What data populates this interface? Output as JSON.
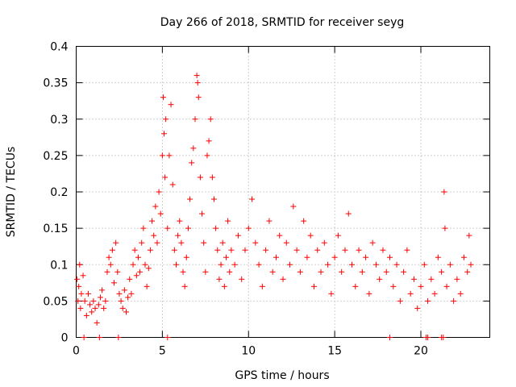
{
  "chart_data": {
    "type": "scatter",
    "title": "Day 266 of 2018, SRMTID for receiver seyg",
    "xlabel": "GPS time / hours",
    "ylabel": "SRMTID / TECUs",
    "xlim": [
      0,
      24
    ],
    "ylim": [
      0,
      0.4
    ],
    "x_ticks": [
      "0",
      "5",
      "10",
      "15",
      "20"
    ],
    "y_ticks": [
      "0",
      "0.05",
      "0.1",
      "0.15",
      "0.2",
      "0.25",
      "0.3",
      "0.35",
      "0.4"
    ],
    "grid": true,
    "marker": "+",
    "series": [
      {
        "name": "SRMTID",
        "color": "#ff0000",
        "points": [
          [
            0.05,
            0.08
          ],
          [
            0.1,
            0.05
          ],
          [
            0.15,
            0.07
          ],
          [
            0.2,
            0.1
          ],
          [
            0.25,
            0.04
          ],
          [
            0.3,
            0.06
          ],
          [
            0.4,
            0.085
          ],
          [
            0.5,
            0.05
          ],
          [
            0.6,
            0.03
          ],
          [
            0.7,
            0.06
          ],
          [
            0.8,
            0.045
          ],
          [
            0.9,
            0.035
          ],
          [
            1.0,
            0.05
          ],
          [
            1.1,
            0.04
          ],
          [
            1.2,
            0.02
          ],
          [
            1.3,
            0.045
          ],
          [
            1.4,
            0.055
          ],
          [
            1.5,
            0.065
          ],
          [
            1.6,
            0.04
          ],
          [
            1.7,
            0.05
          ],
          [
            1.8,
            0.09
          ],
          [
            1.9,
            0.11
          ],
          [
            2.0,
            0.1
          ],
          [
            2.1,
            0.12
          ],
          [
            2.2,
            0.075
          ],
          [
            2.3,
            0.13
          ],
          [
            2.4,
            0.09
          ],
          [
            2.5,
            0.06
          ],
          [
            2.6,
            0.05
          ],
          [
            2.7,
            0.04
          ],
          [
            2.8,
            0.065
          ],
          [
            2.9,
            0.035
          ],
          [
            3.0,
            0.055
          ],
          [
            3.1,
            0.08
          ],
          [
            3.2,
            0.06
          ],
          [
            3.3,
            0.1
          ],
          [
            3.4,
            0.12
          ],
          [
            3.5,
            0.085
          ],
          [
            3.6,
            0.11
          ],
          [
            3.7,
            0.09
          ],
          [
            3.8,
            0.13
          ],
          [
            3.9,
            0.15
          ],
          [
            4.0,
            0.1
          ],
          [
            4.1,
            0.07
          ],
          [
            4.2,
            0.095
          ],
          [
            4.3,
            0.12
          ],
          [
            4.4,
            0.16
          ],
          [
            4.5,
            0.14
          ],
          [
            4.6,
            0.18
          ],
          [
            4.7,
            0.13
          ],
          [
            4.8,
            0.2
          ],
          [
            4.9,
            0.17
          ],
          [
            5.0,
            0.25
          ],
          [
            5.05,
            0.33
          ],
          [
            5.1,
            0.28
          ],
          [
            5.15,
            0.22
          ],
          [
            5.2,
            0.3
          ],
          [
            5.3,
            0.15
          ],
          [
            5.4,
            0.25
          ],
          [
            5.5,
            0.32
          ],
          [
            5.6,
            0.21
          ],
          [
            5.7,
            0.12
          ],
          [
            5.8,
            0.1
          ],
          [
            5.9,
            0.14
          ],
          [
            6.0,
            0.16
          ],
          [
            6.1,
            0.13
          ],
          [
            6.2,
            0.09
          ],
          [
            6.3,
            0.07
          ],
          [
            6.4,
            0.11
          ],
          [
            6.5,
            0.15
          ],
          [
            6.6,
            0.19
          ],
          [
            6.7,
            0.24
          ],
          [
            6.8,
            0.26
          ],
          [
            6.9,
            0.3
          ],
          [
            7.0,
            0.36
          ],
          [
            7.05,
            0.35
          ],
          [
            7.1,
            0.33
          ],
          [
            7.2,
            0.22
          ],
          [
            7.3,
            0.17
          ],
          [
            7.4,
            0.13
          ],
          [
            7.5,
            0.09
          ],
          [
            7.6,
            0.25
          ],
          [
            7.7,
            0.27
          ],
          [
            7.8,
            0.3
          ],
          [
            7.9,
            0.22
          ],
          [
            8.0,
            0.19
          ],
          [
            8.1,
            0.15
          ],
          [
            8.2,
            0.12
          ],
          [
            8.3,
            0.08
          ],
          [
            8.4,
            0.1
          ],
          [
            8.5,
            0.13
          ],
          [
            8.6,
            0.07
          ],
          [
            8.7,
            0.11
          ],
          [
            8.8,
            0.16
          ],
          [
            8.9,
            0.09
          ],
          [
            9.0,
            0.12
          ],
          [
            9.2,
            0.1
          ],
          [
            9.4,
            0.14
          ],
          [
            9.6,
            0.08
          ],
          [
            9.8,
            0.12
          ],
          [
            10.0,
            0.15
          ],
          [
            10.2,
            0.19
          ],
          [
            10.4,
            0.13
          ],
          [
            10.6,
            0.1
          ],
          [
            10.8,
            0.07
          ],
          [
            11.0,
            0.12
          ],
          [
            11.2,
            0.16
          ],
          [
            11.4,
            0.09
          ],
          [
            11.6,
            0.11
          ],
          [
            11.8,
            0.14
          ],
          [
            12.0,
            0.08
          ],
          [
            12.2,
            0.13
          ],
          [
            12.4,
            0.1
          ],
          [
            12.6,
            0.18
          ],
          [
            12.8,
            0.12
          ],
          [
            13.0,
            0.09
          ],
          [
            13.2,
            0.16
          ],
          [
            13.4,
            0.11
          ],
          [
            13.6,
            0.14
          ],
          [
            13.8,
            0.07
          ],
          [
            14.0,
            0.12
          ],
          [
            14.2,
            0.09
          ],
          [
            14.4,
            0.13
          ],
          [
            14.6,
            0.1
          ],
          [
            14.8,
            0.06
          ],
          [
            15.0,
            0.11
          ],
          [
            15.2,
            0.14
          ],
          [
            15.4,
            0.09
          ],
          [
            15.6,
            0.12
          ],
          [
            15.8,
            0.17
          ],
          [
            16.0,
            0.1
          ],
          [
            16.2,
            0.07
          ],
          [
            16.4,
            0.12
          ],
          [
            16.6,
            0.09
          ],
          [
            16.8,
            0.11
          ],
          [
            17.0,
            0.06
          ],
          [
            17.2,
            0.13
          ],
          [
            17.4,
            0.1
          ],
          [
            17.6,
            0.08
          ],
          [
            17.8,
            0.12
          ],
          [
            18.0,
            0.09
          ],
          [
            18.2,
            0.11
          ],
          [
            18.4,
            0.07
          ],
          [
            18.6,
            0.1
          ],
          [
            18.8,
            0.05
          ],
          [
            19.0,
            0.09
          ],
          [
            19.2,
            0.12
          ],
          [
            19.4,
            0.06
          ],
          [
            19.6,
            0.08
          ],
          [
            19.8,
            0.04
          ],
          [
            20.0,
            0.07
          ],
          [
            20.2,
            0.1
          ],
          [
            20.4,
            0.05
          ],
          [
            20.6,
            0.08
          ],
          [
            20.8,
            0.06
          ],
          [
            21.0,
            0.11
          ],
          [
            21.2,
            0.09
          ],
          [
            21.35,
            0.2
          ],
          [
            21.4,
            0.15
          ],
          [
            21.5,
            0.07
          ],
          [
            21.7,
            0.1
          ],
          [
            21.9,
            0.05
          ],
          [
            22.1,
            0.08
          ],
          [
            22.3,
            0.06
          ],
          [
            22.5,
            0.11
          ],
          [
            22.7,
            0.09
          ],
          [
            22.8,
            0.14
          ],
          [
            22.9,
            0.1
          ],
          [
            0.45,
            0.0
          ],
          [
            1.35,
            0.0
          ],
          [
            2.45,
            0.0
          ],
          [
            5.3,
            0.0
          ],
          [
            18.2,
            0.0
          ],
          [
            20.3,
            0.0
          ],
          [
            20.4,
            0.0
          ],
          [
            21.2,
            0.0
          ],
          [
            21.3,
            0.0
          ]
        ]
      }
    ]
  }
}
